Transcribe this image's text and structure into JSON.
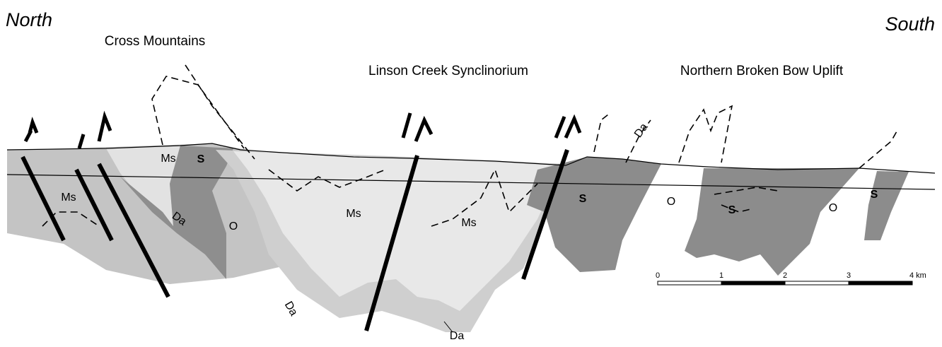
{
  "header": {
    "left": "North",
    "right": "South"
  },
  "regions": [
    "Cross Mountains",
    "Linson Creek Synclinorium",
    "Northern Broken Bow Uplift"
  ],
  "units": [
    "Ms",
    "S",
    "Ms",
    "Da",
    "O",
    "Da",
    "Ms",
    "Ms",
    "S",
    "O",
    "S",
    "O",
    "S",
    "Da",
    "Da"
  ],
  "scale_bar": {
    "labels": [
      "0",
      "1",
      "2",
      "3",
      "4 km"
    ]
  }
}
